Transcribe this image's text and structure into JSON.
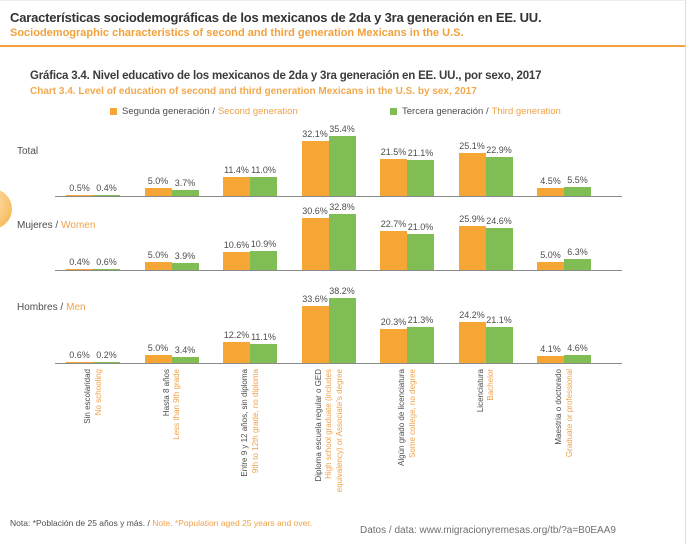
{
  "header": {
    "title_es": "Características sociodemográficas de los mexicanos de 2da y 3ra generación en EE. UU.",
    "title_en": "Sociodemographic characteristics of second and third generation Mexicans in the U.S."
  },
  "chart": {
    "title_es": "Gráfica 3.4. Nivel educativo de los mexicanos de 2da y 3ra generación en EE. UU., por sexo, 2017",
    "title_en": "Chart 3.4. Level of education of second and third generation Mexicans in the U.S. by sex, 2017"
  },
  "legend": {
    "segunda_es": "Segunda generación /",
    "segunda_en": "Second generation",
    "tercera_es": "Tercera generación /",
    "tercera_en": "Third generation"
  },
  "colors": {
    "segunda_bar": "#F6A634",
    "tercera_bar": "#80BD55",
    "orange_text": "#F0A148",
    "rule_orange": "#F2A13B",
    "axis_gray": "#8A8A8A"
  },
  "chart_data": {
    "type": "bar",
    "unit": "%",
    "ylim": [
      0,
      40
    ],
    "value_labels": true,
    "legend_position": "top",
    "grid": false,
    "categories": [
      {
        "es": "Sin escolaridad",
        "en": [
          "No schooling"
        ]
      },
      {
        "es": "Hasta 8 años",
        "en": [
          "Less than 9th grade"
        ]
      },
      {
        "es": "Entre 9 y 12 años, sin diploma",
        "en": [
          "9th to 12th grade, no diploma"
        ]
      },
      {
        "es": "Diploma escuela regular o GED",
        "en": [
          "High school graduate (includes",
          "equivalency) or Associate's degree"
        ]
      },
      {
        "es": "Algún grado de licenciatura",
        "en": [
          "Some college, no degree"
        ]
      },
      {
        "es": "Licenciatura",
        "en": [
          "Bachelor"
        ]
      },
      {
        "es": "Maestría o doctorado",
        "en": [
          "Graduate or professional"
        ]
      }
    ],
    "groups": [
      {
        "label_es": "Total",
        "label_en": "",
        "segunda": [
          0.5,
          5.0,
          11.4,
          32.1,
          21.5,
          25.1,
          4.5
        ],
        "tercera": [
          0.4,
          3.7,
          11.0,
          35.4,
          21.1,
          22.9,
          5.5
        ]
      },
      {
        "label_es": "Mujeres /",
        "label_en": "Women",
        "segunda": [
          0.4,
          5.0,
          10.6,
          30.6,
          22.7,
          25.9,
          5.0
        ],
        "tercera": [
          0.6,
          3.9,
          10.9,
          32.8,
          21.0,
          24.6,
          6.3
        ]
      },
      {
        "label_es": "Hombres /",
        "label_en": "Men",
        "segunda": [
          0.6,
          5.0,
          12.2,
          33.6,
          20.3,
          24.2,
          4.1
        ],
        "tercera": [
          0.2,
          3.4,
          11.1,
          38.2,
          21.3,
          21.1,
          4.6
        ]
      }
    ]
  },
  "footer": {
    "note_es": "Nota: *Población de 25 años y más. /",
    "note_en": "Note. *Population aged 25 years and over.",
    "source": "Datos / data: www.migracionyremesas.org/tb/?a=B0EAA9"
  }
}
